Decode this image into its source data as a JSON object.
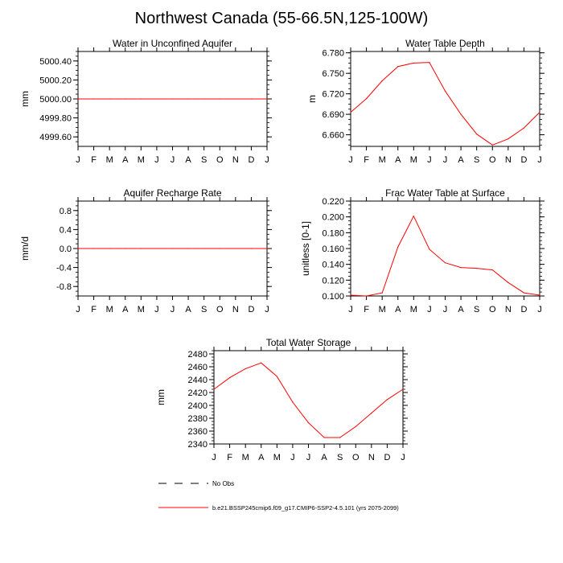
{
  "title": "Northwest Canada (55-66.5N,125-100W)",
  "months": [
    "J",
    "F",
    "M",
    "A",
    "M",
    "J",
    "J",
    "A",
    "S",
    "O",
    "N",
    "D",
    "J"
  ],
  "colors": {
    "model": "#ff0000",
    "obs": "#000000",
    "axis": "#000000"
  },
  "chart_data": [
    {
      "type": "line",
      "title": "Water in Unconfined Aquifer",
      "ylabel": "mm",
      "ylim": [
        4999.5,
        5000.5
      ],
      "yticks": [
        "5000.40",
        "5000.20",
        "5000.00",
        "4999.80",
        "4999.60"
      ],
      "ytick_values": [
        5000.4,
        5000.2,
        5000.0,
        4999.8,
        4999.6
      ],
      "series": [
        {
          "name": "b.e21.BSSP245cmip6.f09_g17.CMIP6-SSP2-4.5.101 (yrs 2075-2099)",
          "values": [
            5000,
            5000,
            5000,
            5000,
            5000,
            5000,
            5000,
            5000,
            5000,
            5000,
            5000,
            5000,
            5000
          ]
        }
      ]
    },
    {
      "type": "line",
      "title": "Water Table Depth",
      "ylabel": "m",
      "ylim": [
        6.643,
        6.782
      ],
      "yticks": [
        "6.780",
        "6.750",
        "6.720",
        "6.690",
        "6.660"
      ],
      "ytick_values": [
        6.78,
        6.75,
        6.72,
        6.69,
        6.66
      ],
      "series": [
        {
          "name": "b.e21.BSSP245cmip6.f09_g17.CMIP6-SSP2-4.5.101 (yrs 2075-2099)",
          "values": [
            6.693,
            6.713,
            6.739,
            6.76,
            6.765,
            6.766,
            6.724,
            6.69,
            6.661,
            6.645,
            6.654,
            6.67,
            6.693
          ]
        }
      ]
    },
    {
      "type": "line",
      "title": "Aquifer Recharge Rate",
      "ylabel": "mm/d",
      "ylim": [
        -1,
        1
      ],
      "yticks": [
        "0.8",
        "0.4",
        "0.0",
        "-0.4",
        "-0.8"
      ],
      "ytick_values": [
        0.8,
        0.4,
        0.0,
        -0.4,
        -0.8
      ],
      "series": [
        {
          "name": "b.e21.BSSP245cmip6.f09_g17.CMIP6-SSP2-4.5.101 (yrs 2075-2099)",
          "values": [
            0,
            0,
            0,
            0,
            0,
            0,
            0,
            0,
            0,
            0,
            0,
            0,
            0
          ]
        }
      ]
    },
    {
      "type": "line",
      "title": "Frac Water Table at Surface",
      "ylabel": "unitless [0-1]",
      "ylim": [
        0.1,
        0.22
      ],
      "yticks": [
        "0.220",
        "0.200",
        "0.180",
        "0.160",
        "0.140",
        "0.120",
        "0.100"
      ],
      "ytick_values": [
        0.22,
        0.2,
        0.18,
        0.16,
        0.14,
        0.12,
        0.1
      ],
      "series": [
        {
          "name": "b.e21.BSSP245cmip6.f09_g17.CMIP6-SSP2-4.5.101 (yrs 2075-2099)",
          "values": [
            0.101,
            0.1,
            0.104,
            0.162,
            0.201,
            0.159,
            0.142,
            0.136,
            0.135,
            0.133,
            0.117,
            0.104,
            0.101
          ]
        }
      ]
    },
    {
      "type": "line",
      "title": "Total Water Storage",
      "ylabel": "mm",
      "ylim": [
        2340,
        2485
      ],
      "yticks": [
        "2480",
        "2460",
        "2440",
        "2420",
        "2400",
        "2380",
        "2360",
        "2340"
      ],
      "ytick_values": [
        2480,
        2460,
        2440,
        2420,
        2400,
        2380,
        2360,
        2340
      ],
      "series": [
        {
          "name": "b.e21.BSSP245cmip6.f09_g17.CMIP6-SSP2-4.5.101 (yrs 2075-2099)",
          "values": [
            2425,
            2443,
            2457,
            2466,
            2445,
            2405,
            2373,
            2350,
            2350,
            2367,
            2388,
            2409,
            2425
          ]
        }
      ]
    }
  ],
  "legend": {
    "obs_label": "No Obs",
    "model_label": "b.e21.BSSP245cmip6.f09_g17.CMIP6-SSP2-4.5.101 (yrs 2075-2099)"
  }
}
